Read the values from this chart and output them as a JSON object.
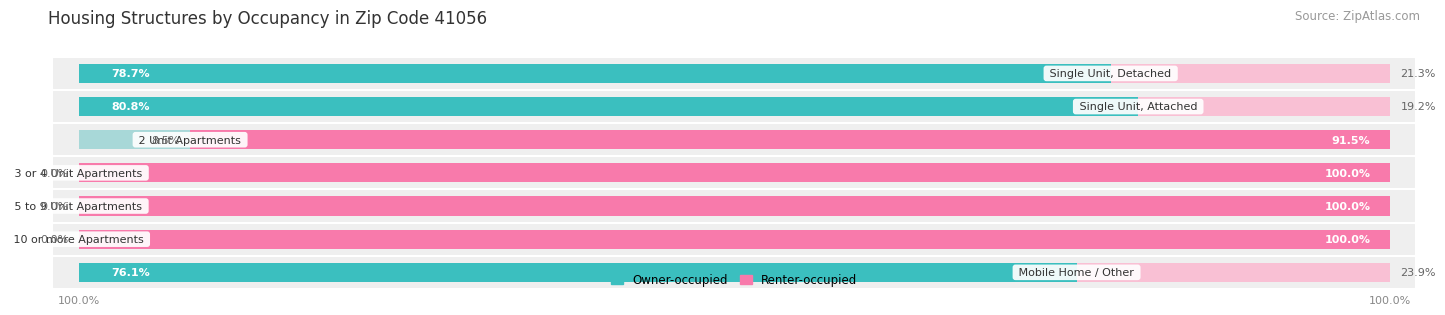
{
  "title": "Housing Structures by Occupancy in Zip Code 41056",
  "source": "Source: ZipAtlas.com",
  "categories": [
    "Single Unit, Detached",
    "Single Unit, Attached",
    "2 Unit Apartments",
    "3 or 4 Unit Apartments",
    "5 to 9 Unit Apartments",
    "10 or more Apartments",
    "Mobile Home / Other"
  ],
  "owner_pct": [
    78.7,
    80.8,
    8.5,
    0.0,
    0.0,
    0.0,
    76.1
  ],
  "renter_pct": [
    21.3,
    19.2,
    91.5,
    100.0,
    100.0,
    100.0,
    23.9
  ],
  "owner_color": "#3bbfbf",
  "renter_color": "#f87aab",
  "owner_color_light": "#a8d8d8",
  "renter_color_light": "#f9c0d4",
  "row_bg_color": "#efefef",
  "row_alt_color": "#e4e4e4",
  "title_fontsize": 12,
  "source_fontsize": 8.5,
  "label_fontsize": 8,
  "pct_fontsize": 8,
  "tick_fontsize": 8
}
